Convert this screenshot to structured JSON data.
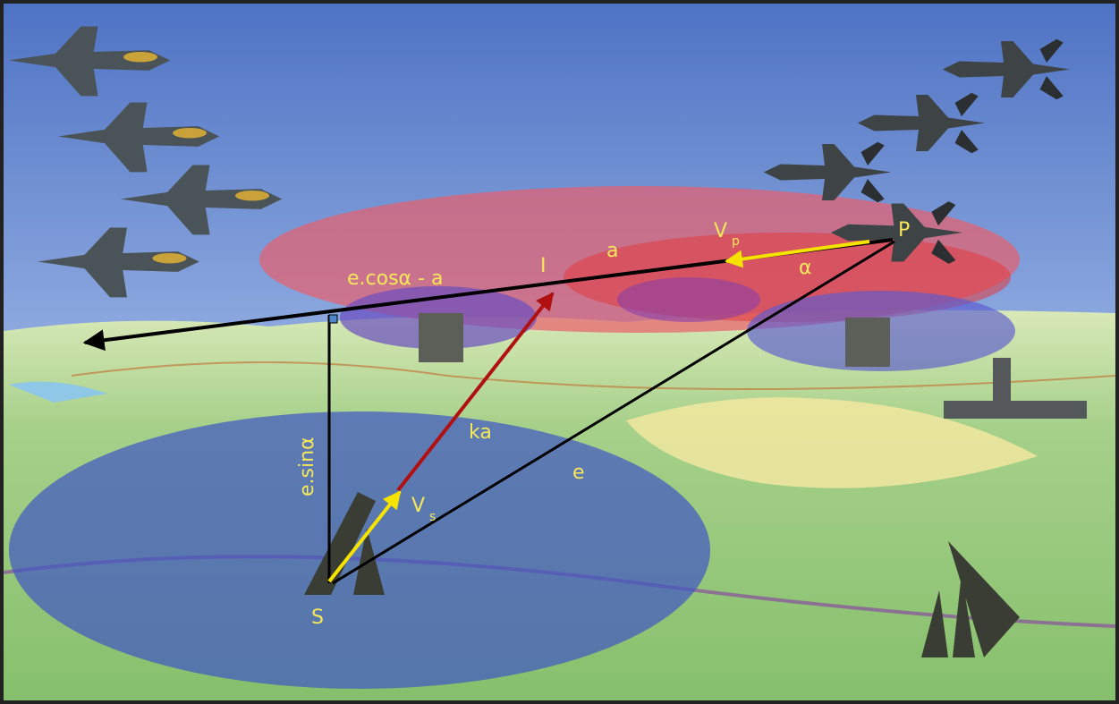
{
  "labels": {
    "ecos": "e.cosα - a",
    "a": "a",
    "vp": {
      "base": "V",
      "sub": "p"
    },
    "p": "P",
    "alpha": "α",
    "i": "I",
    "ka": "ka",
    "e": "e",
    "vs": {
      "base": "V",
      "sub": "s"
    },
    "s": "S",
    "esin": "e.sinα"
  }
}
